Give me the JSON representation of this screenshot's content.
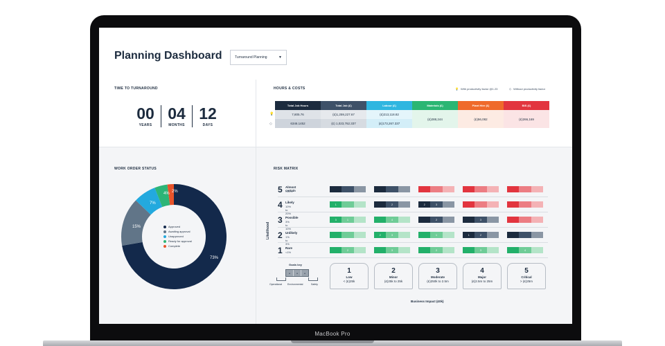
{
  "device": {
    "label": "MacBook Pro"
  },
  "header": {
    "title": "Planning Dashboard",
    "dropdown_value": "Turnaround Planning",
    "dropdown_icon": "chevron-down-icon"
  },
  "turnaround": {
    "title": "TIME TO TURNAROUND",
    "units": [
      {
        "value": "00",
        "label": "YEARS"
      },
      {
        "value": "04",
        "label": "MONTHS"
      },
      {
        "value": "12",
        "label": "DAYS"
      }
    ]
  },
  "hours_costs": {
    "title": "HOURS & COSTS",
    "legend_with": "With productivity factor @1.23",
    "legend_without": "Without productivity factor",
    "columns": [
      {
        "label": "Total Job Hours",
        "color": "#1c2b3e"
      },
      {
        "label": "Total Job (£)",
        "color": "#3e5168"
      },
      {
        "label": "Labour (£)",
        "color": "#2fb6e0"
      },
      {
        "label": "Materials (£)",
        "color": "#2bb673"
      },
      {
        "label": "Plant Hire (£)",
        "color": "#ef6a2b"
      },
      {
        "label": "BIS (£)",
        "color": "#e2353f"
      }
    ],
    "rows": [
      [
        "7,805.76",
        "(£)1,259,227.67",
        "(£)213,118.82"
      ],
      [
        "6346.1452",
        "(£) 1,023,762.337",
        "(£)173,267.337"
      ]
    ],
    "shared": [
      "(£)288,244",
      "(£)56,082",
      "(£)266,169"
    ]
  },
  "work_order": {
    "title": "WORK ORDER STATUS",
    "legend": [
      {
        "label": "Approved",
        "color": "#13294b"
      },
      {
        "label": "Awaiting approval",
        "color": "#617588"
      },
      {
        "label": "Unapproved",
        "color": "#23a9de"
      },
      {
        "label": "Ready for approval",
        "color": "#2db577"
      },
      {
        "label": "Complete",
        "color": "#e8542b"
      }
    ],
    "percent_labels": [
      "73%",
      "15%",
      "7%",
      "4%",
      "2%"
    ]
  },
  "chart_data": {
    "type": "pie",
    "categories": [
      "Approved",
      "Awaiting approval",
      "Unapproved",
      "Ready for approval",
      "Complete"
    ],
    "values": [
      73,
      15,
      7,
      4,
      2
    ],
    "title": "WORK ORDER STATUS"
  },
  "risk_matrix": {
    "title": "RISK MATRIX",
    "axis_y": "Likelihood",
    "axis_x": "Business Impact (£0k)",
    "rows": [
      {
        "num": "5",
        "label": "Almost certain",
        "sub": ">20%"
      },
      {
        "num": "4",
        "label": "Likely",
        "sub": "10% to 20%"
      },
      {
        "num": "3",
        "label": "Possible",
        "sub": "3% to 10%"
      },
      {
        "num": "2",
        "label": "Unlikely",
        "sub": "1% to 3%"
      },
      {
        "num": "1",
        "label": "Rare",
        "sub": "<1%"
      }
    ],
    "impacts": [
      {
        "num": "1",
        "label": "Low",
        "range": "< (£)25k"
      },
      {
        "num": "2",
        "label": "Minor",
        "range": "(£)25k to 25k"
      },
      {
        "num": "3",
        "label": "Moderate",
        "range": "(£)250k to 2.5m"
      },
      {
        "num": "4",
        "label": "Major",
        "range": "(£)2.5m to 25m"
      },
      {
        "num": "5",
        "label": "Critical",
        "range": "> (£)25m"
      }
    ],
    "goals_key": {
      "title": "Goals key",
      "labels": [
        "Operational",
        "Environmental",
        "Safety"
      ]
    },
    "cell_marks": {
      "r4": [
        "1",
        "2",
        "3",
        "2",
        "3"
      ],
      "r3": [
        "3",
        "1",
        "4",
        "2",
        "3"
      ],
      "r2": [
        "2",
        "3",
        "1",
        "1",
        "2"
      ],
      "r1": [
        "2",
        "3",
        "2",
        "3",
        "4"
      ]
    }
  }
}
